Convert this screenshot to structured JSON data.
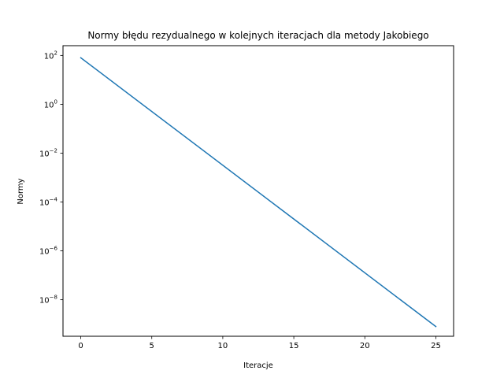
{
  "chart_data": {
    "type": "line",
    "title": "Normy błędu rezydualnego w kolejnych iteracjach dla metody Jakobiego",
    "xlabel": "Iteracje",
    "ylabel": "Normy",
    "yscale": "log",
    "xlim": [
      -1.25,
      26.25
    ],
    "ylim": [
      3.2e-10,
      250.0
    ],
    "x_ticks": [
      0,
      5,
      10,
      15,
      20,
      25
    ],
    "y_ticks": [
      {
        "value": 100.0,
        "base": "10",
        "exp": "2"
      },
      {
        "value": 1.0,
        "base": "10",
        "exp": "0"
      },
      {
        "value": 0.01,
        "base": "10",
        "exp": "−2"
      },
      {
        "value": 0.0001,
        "base": "10",
        "exp": "−4"
      },
      {
        "value": 1e-06,
        "base": "10",
        "exp": "−6"
      },
      {
        "value": 1e-08,
        "base": "10",
        "exp": "−8"
      }
    ],
    "grid": false,
    "legend": "none",
    "series": [
      {
        "color": "#1f77b4",
        "x": [
          0,
          25
        ],
        "y": [
          80,
          8e-10
        ]
      }
    ]
  }
}
